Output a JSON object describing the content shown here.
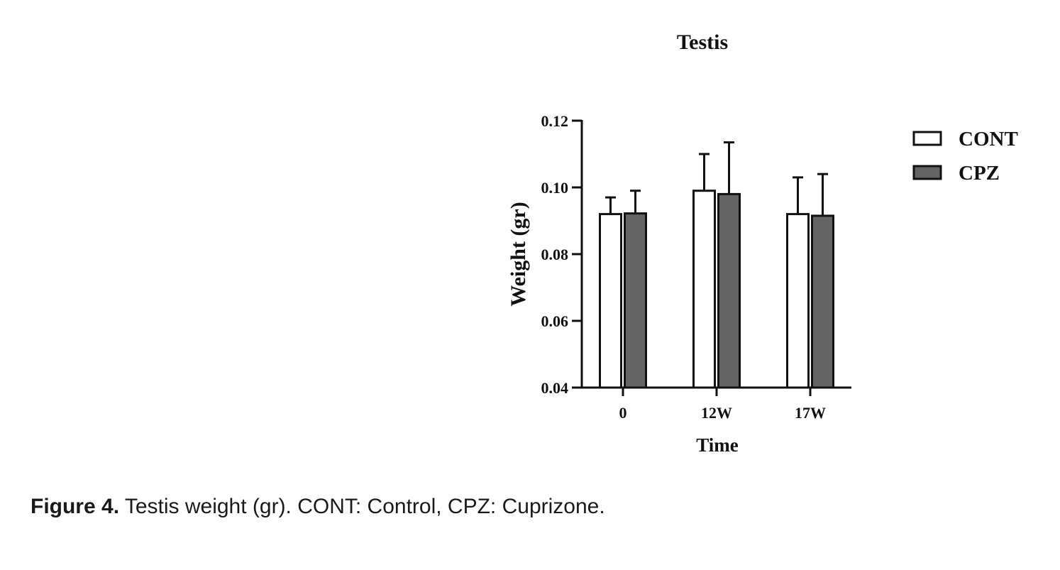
{
  "chart_data": {
    "type": "bar",
    "title": "Testis",
    "xlabel": "Time",
    "ylabel": "Weight (gr)",
    "categories": [
      "0",
      "12W",
      "17W"
    ],
    "ylim": [
      0.04,
      0.12
    ],
    "yticks": [
      "0.04",
      "0.06",
      "0.08",
      "0.10",
      "0.12"
    ],
    "error_bars": "upper only",
    "legend_position": "top-right",
    "series": [
      {
        "name": "CONT",
        "color": "#ffffff",
        "values": [
          0.092,
          0.099,
          0.092
        ],
        "errors": [
          0.005,
          0.011,
          0.011
        ]
      },
      {
        "name": "CPZ",
        "color": "#646464",
        "values": [
          0.0922,
          0.098,
          0.0915
        ],
        "errors": [
          0.0068,
          0.0155,
          0.0125
        ]
      }
    ]
  },
  "caption": {
    "label": "Figure 4.",
    "text": " Testis weight (gr). CONT: Control, CPZ: Cuprizone."
  }
}
